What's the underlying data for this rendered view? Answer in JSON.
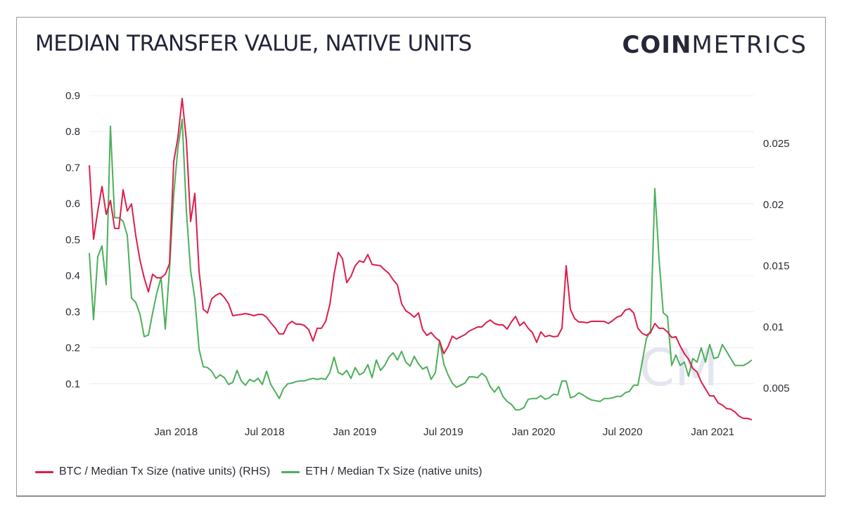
{
  "header": {
    "title": "MEDIAN TRANSFER VALUE, NATIVE UNITS",
    "logo_bold": "COIN",
    "logo_light": "METRICS"
  },
  "watermark": "CM",
  "colors": {
    "btc": "#dc1e4b",
    "eth": "#4caf5a",
    "grid": "#ececef",
    "text": "#2b2d35"
  },
  "chart_data": {
    "type": "line",
    "title": "MEDIAN TRANSFER VALUE, NATIVE UNITS",
    "xlabel": "",
    "ylabel": "",
    "x_start": "2017-07-08",
    "x_end": "2021-03-22",
    "x_sampling": "uniform between x_start and x_end",
    "x_ticks": [
      {
        "date": "2018-01-01",
        "label": "Jan 2018"
      },
      {
        "date": "2018-07-01",
        "label": "Jul 2018"
      },
      {
        "date": "2019-01-01",
        "label": "Jan 2019"
      },
      {
        "date": "2019-07-01",
        "label": "Jul 2019"
      },
      {
        "date": "2020-01-01",
        "label": "Jan 2020"
      },
      {
        "date": "2020-07-01",
        "label": "Jul 2020"
      },
      {
        "date": "2021-01-01",
        "label": "Jan 2021"
      }
    ],
    "y_left": {
      "ylim": [
        0,
        0.9
      ],
      "ticks": [
        0.1,
        0.2,
        0.3,
        0.4,
        0.5,
        0.6,
        0.7,
        0.8,
        0.9
      ],
      "tick_labels": [
        "0.1",
        "0.2",
        "0.3",
        "0.4",
        "0.5",
        "0.6",
        "0.7",
        "0.8",
        "0.9"
      ]
    },
    "y_right": {
      "ylim": [
        0.0024,
        0.0303
      ],
      "ticks": [
        0.005,
        0.01,
        0.015,
        0.02,
        0.025
      ],
      "tick_labels": [
        "0.005",
        "0.01",
        "0.015",
        "0.02",
        "0.025"
      ]
    },
    "grid": true,
    "legend_position": "bottom-left",
    "series": [
      {
        "name": "BTC / Median Tx Size (native units) (RHS)",
        "axis": "right",
        "color": "#dc1e4b",
        "values": [
          0.02322,
          0.01718,
          0.01948,
          0.02149,
          0.0192,
          0.02034,
          0.01805,
          0.01805,
          0.02121,
          0.01948,
          0.02006,
          0.01747,
          0.01546,
          0.01402,
          0.01287,
          0.01431,
          0.01402,
          0.01402,
          0.01431,
          0.01517,
          0.02351,
          0.02552,
          0.02868,
          0.02523,
          0.01862,
          0.02092,
          0.0146,
          0.01144,
          0.01115,
          0.0123,
          0.01259,
          0.01276,
          0.01241,
          0.0119,
          0.01092,
          0.01098,
          0.01103,
          0.01109,
          0.01103,
          0.01092,
          0.01103,
          0.01103,
          0.0108,
          0.01034,
          0.00994,
          0.00943,
          0.00943,
          0.01017,
          0.01046,
          0.01023,
          0.01023,
          0.01011,
          0.00977,
          0.00885,
          0.00989,
          0.00989,
          0.01046,
          0.01184,
          0.01431,
          0.01609,
          0.01557,
          0.01362,
          0.01414,
          0.015,
          0.0154,
          0.01529,
          0.01592,
          0.01511,
          0.01506,
          0.015,
          0.01466,
          0.01437,
          0.01385,
          0.01345,
          0.0119,
          0.01132,
          0.01109,
          0.0108,
          0.01115,
          0.00977,
          0.00931,
          0.00954,
          0.00914,
          0.00885,
          0.00782,
          0.00839,
          0.00925,
          0.00902,
          0.0092,
          0.00937,
          0.00966,
          0.00983,
          0.01,
          0.01,
          0.01034,
          0.01057,
          0.01029,
          0.01017,
          0.01017,
          0.00983,
          0.0104,
          0.01086,
          0.01011,
          0.0104,
          0.00989,
          0.00954,
          0.00874,
          0.0096,
          0.0092,
          0.00931,
          0.0092,
          0.00925,
          0.00989,
          0.015,
          0.01144,
          0.01069,
          0.0104,
          0.0104,
          0.01034,
          0.01046,
          0.01046,
          0.01046,
          0.01046,
          0.01029,
          0.01052,
          0.0108,
          0.01092,
          0.01138,
          0.01149,
          0.01115,
          0.00989,
          0.00948,
          0.00931,
          0.00954,
          0.01029,
          0.00989,
          0.00989,
          0.0096,
          0.00914,
          0.0092,
          0.00845,
          0.00782,
          0.00736,
          0.00661,
          0.00632,
          0.00552,
          0.00494,
          0.00437,
          0.00437,
          0.00379,
          0.00362,
          0.00333,
          0.00328,
          0.00305,
          0.0027,
          0.00253,
          0.00253,
          0.00241
        ]
      },
      {
        "name": "ETH / Median Tx Size (native units)",
        "axis": "left",
        "color": "#4caf5a",
        "values": [
          0.463,
          0.278,
          0.453,
          0.483,
          0.375,
          0.815,
          0.561,
          0.561,
          0.551,
          0.512,
          0.338,
          0.326,
          0.293,
          0.231,
          0.235,
          0.297,
          0.352,
          0.395,
          0.252,
          0.418,
          0.625,
          0.756,
          0.834,
          0.58,
          0.414,
          0.336,
          0.196,
          0.147,
          0.145,
          0.135,
          0.115,
          0.125,
          0.117,
          0.098,
          0.104,
          0.137,
          0.108,
          0.096,
          0.112,
          0.106,
          0.115,
          0.098,
          0.135,
          0.098,
          0.079,
          0.059,
          0.086,
          0.1,
          0.102,
          0.106,
          0.108,
          0.108,
          0.112,
          0.115,
          0.112,
          0.115,
          0.112,
          0.131,
          0.174,
          0.131,
          0.125,
          0.137,
          0.115,
          0.145,
          0.125,
          0.131,
          0.153,
          0.117,
          0.166,
          0.137,
          0.151,
          0.174,
          0.186,
          0.166,
          0.19,
          0.16,
          0.149,
          0.176,
          0.155,
          0.141,
          0.147,
          0.112,
          0.131,
          0.221,
          0.155,
          0.125,
          0.102,
          0.09,
          0.096,
          0.102,
          0.119,
          0.119,
          0.117,
          0.129,
          0.119,
          0.092,
          0.077,
          0.092,
          0.065,
          0.051,
          0.043,
          0.028,
          0.028,
          0.034,
          0.057,
          0.059,
          0.059,
          0.067,
          0.057,
          0.061,
          0.071,
          0.069,
          0.108,
          0.108,
          0.061,
          0.065,
          0.075,
          0.069,
          0.061,
          0.055,
          0.053,
          0.051,
          0.059,
          0.059,
          0.061,
          0.065,
          0.065,
          0.075,
          0.079,
          0.096,
          0.096,
          0.16,
          0.225,
          0.248,
          0.642,
          0.447,
          0.297,
          0.287,
          0.151,
          0.18,
          0.151,
          0.16,
          0.121,
          0.17,
          0.16,
          0.2,
          0.16,
          0.209,
          0.17,
          0.174,
          0.209,
          0.19,
          0.17,
          0.151,
          0.151,
          0.151,
          0.157,
          0.166
        ]
      }
    ]
  }
}
